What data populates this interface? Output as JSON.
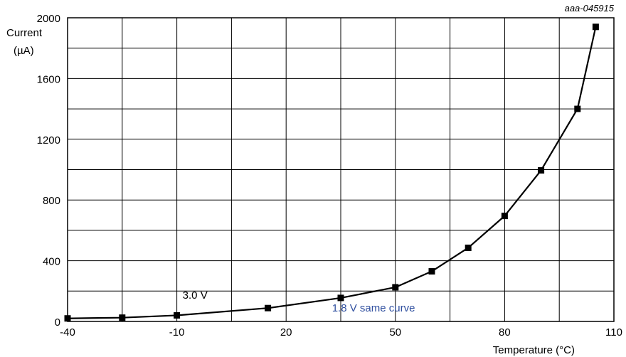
{
  "chart_data": {
    "type": "line",
    "figure_id": "aaa-045915",
    "title": "",
    "xlabel": "Temperature (°C)",
    "ylabel_lines": [
      "Current",
      "(µA)"
    ],
    "xlim": [
      -40,
      110
    ],
    "ylim": [
      0,
      2000
    ],
    "x_ticks": [
      -40,
      -10,
      20,
      50,
      80,
      110
    ],
    "y_ticks": [
      0,
      400,
      800,
      1200,
      1600,
      2000
    ],
    "x_grid": [
      -40,
      -25,
      -10,
      5,
      20,
      35,
      50,
      65,
      80,
      95,
      110
    ],
    "y_grid": [
      0,
      200,
      400,
      600,
      800,
      1000,
      1200,
      1400,
      1600,
      1800,
      2000
    ],
    "grid": true,
    "series": [
      {
        "color": "#000000",
        "marker": "square",
        "x": [
          -40,
          -25,
          -10,
          15,
          35,
          50,
          60,
          70,
          80,
          90,
          100,
          105
        ],
        "y": [
          20,
          25,
          40,
          88,
          155,
          225,
          330,
          485,
          695,
          995,
          1400,
          1940
        ]
      }
    ],
    "annotations": [
      {
        "text": "3.0 V",
        "x": -5,
        "y": 150,
        "color": "#000000"
      },
      {
        "text": "1.8 V same curve",
        "x": 44,
        "y": 65,
        "color": "#2f4f9f"
      }
    ]
  }
}
